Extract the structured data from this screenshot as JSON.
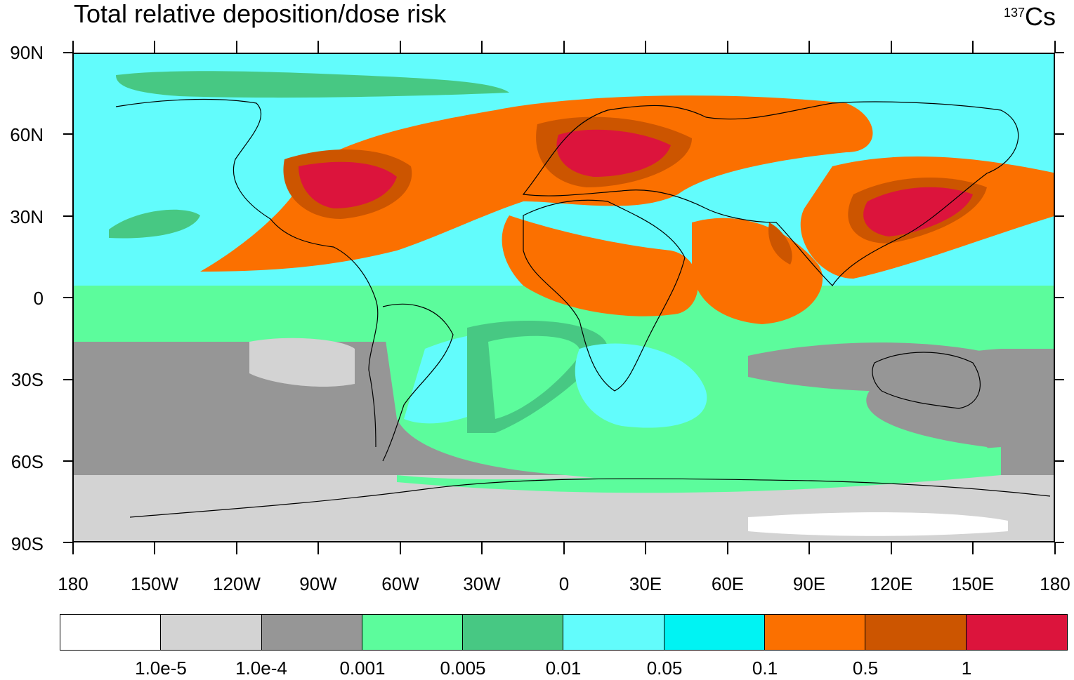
{
  "figure": {
    "title": "Total relative deposition/dose risk",
    "isotope_mass": "137",
    "isotope_symbol": "Cs"
  },
  "axes": {
    "lat_labels": [
      "90N",
      "60N",
      "30N",
      "0",
      "30S",
      "60S",
      "90S"
    ],
    "lon_labels": [
      "180",
      "150W",
      "120W",
      "90W",
      "60W",
      "30W",
      "0",
      "30E",
      "60E",
      "90E",
      "120E",
      "150E",
      "180"
    ]
  },
  "colorbar": {
    "colors": [
      "#ffffff",
      "#d3d3d3",
      "#969696",
      "#5cfc9c",
      "#47c883",
      "#62fcfc",
      "#00f3f3",
      "#fb7000",
      "#cc5500",
      "#dc143c"
    ],
    "labels": [
      "1.0e-5",
      "1.0e-4",
      "0.001",
      "0.005",
      "0.01",
      "0.05",
      "0.1",
      "0.5",
      "1"
    ]
  }
}
